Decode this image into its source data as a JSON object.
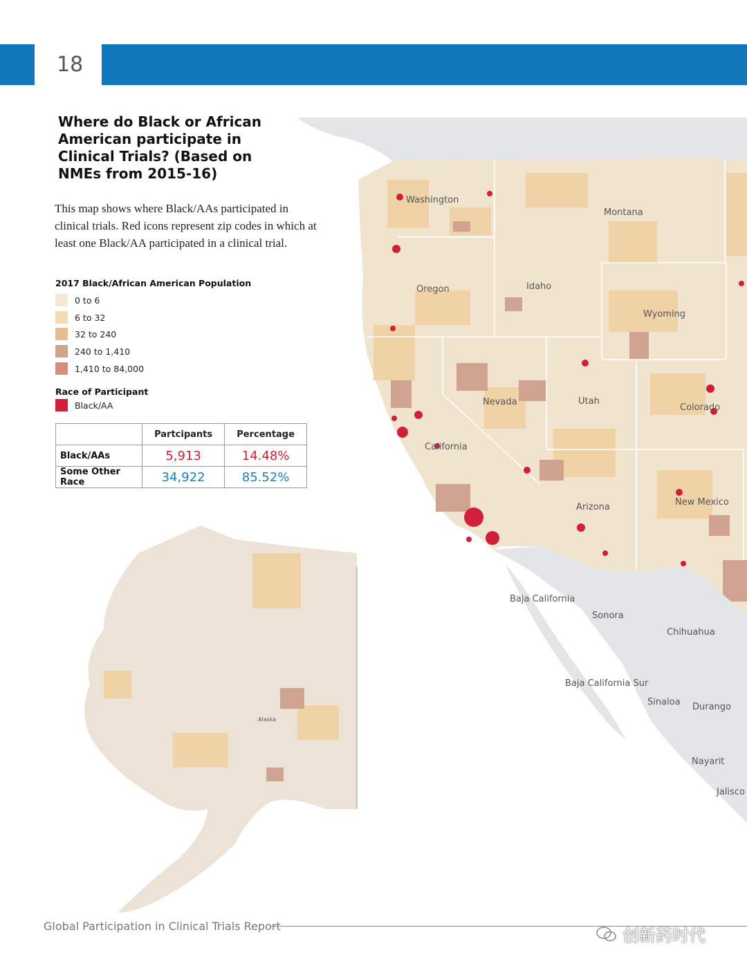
{
  "header": {
    "page_number": "18"
  },
  "title": "Where do Black or African American participate in Clinical Trials? (Based on NMEs from 2015-16)",
  "intro": "This map shows where Black/AAs participated in clinical trials.  Red icons represent zip codes in which at least one Black/AA participated in a clinical trial.",
  "legend_population": {
    "heading": "2017 Black/African American Population",
    "items": [
      {
        "label": "0 to 6",
        "color": "#f4e8d8"
      },
      {
        "label": "6 to 32",
        "color": "#f3dcb5"
      },
      {
        "label": "32 to 240",
        "color": "#e4bd92"
      },
      {
        "label": "240 to 1,410",
        "color": "#cfa38f"
      },
      {
        "label": "1,410 to 84,000",
        "color": "#d38f7a"
      }
    ]
  },
  "legend_race": {
    "heading": "Race of Participant",
    "items": [
      {
        "label": "Black/AA",
        "color": "#d01f38"
      }
    ]
  },
  "table": {
    "headers": [
      "",
      "Partcipants",
      "Percentage"
    ],
    "rows": [
      {
        "label": "Black/AAs",
        "participants": "5,913",
        "percentage": "14.48%",
        "color": "#d01f38"
      },
      {
        "label": "Some Other Race",
        "participants": "34,922",
        "percentage": "85.52%",
        "color": "#1a7fbf"
      }
    ]
  },
  "map": {
    "state_labels": [
      "Washington",
      "Montana",
      "Oregon",
      "Idaho",
      "Wyoming",
      "Nevada",
      "Utah",
      "Colorado",
      "California",
      "Arizona",
      "New Mexico"
    ],
    "mexico_labels": [
      "Baja California",
      "Sonora",
      "Chihuahua",
      "Baja California Sur",
      "Sinaloa",
      "Durango",
      "Nayarit",
      "Jalisco"
    ],
    "inset_label": "Alaska"
  },
  "footer": {
    "report_title": "Global Participation in Clinical Trials Report"
  },
  "watermark": {
    "text": "创新药时代"
  },
  "colors": {
    "brand_blue": "#1177bb",
    "land_gray": "#e3e5e6",
    "highlight_red": "#d01f38"
  }
}
